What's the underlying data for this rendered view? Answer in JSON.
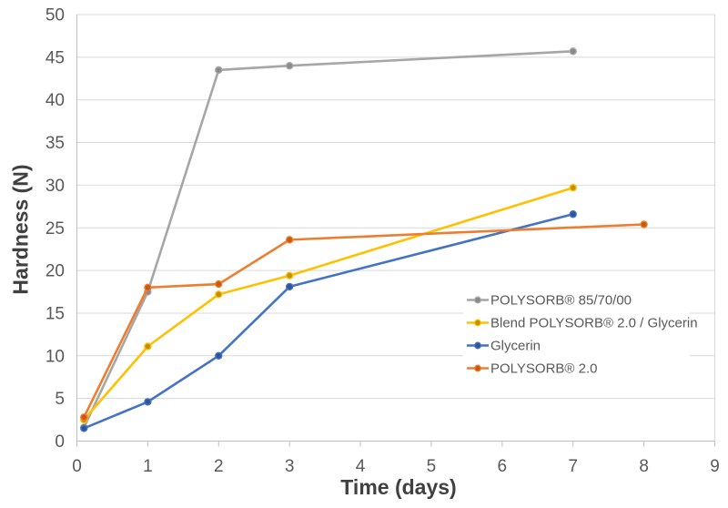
{
  "chart_data": {
    "type": "line",
    "title": "",
    "xlabel": "Time (days)",
    "ylabel": "Hardness (N)",
    "xlim": [
      0,
      9
    ],
    "ylim": [
      0,
      50
    ],
    "x_ticks": [
      0,
      1,
      2,
      3,
      4,
      5,
      6,
      7,
      8,
      9
    ],
    "y_ticks": [
      0,
      5,
      10,
      15,
      20,
      25,
      30,
      35,
      40,
      45,
      50
    ],
    "grid": "horizontal-only",
    "legend_position": "inside-right",
    "colors": {
      "background": "#FFFFFF",
      "gridline": "#D9D9D9",
      "axis_line": "#BFBFBF",
      "right_border": "#D9D9D9",
      "tick_label": "#595959",
      "axis_title": "#404040",
      "legend_text": "#595959",
      "legend_background": "#FFFFFF"
    },
    "series": [
      {
        "name": "POLYSORB® 85/70/00",
        "line_color": "#A6A6A6",
        "marker_color": "#8A8A8A",
        "points": [
          [
            0.1,
            1.6
          ],
          [
            1,
            17.5
          ],
          [
            2,
            43.5
          ],
          [
            3,
            44.0
          ],
          [
            7,
            45.7
          ]
        ]
      },
      {
        "name": "Blend POLYSORB® 2.0 / Glycerin",
        "line_color": "#FFC000",
        "marker_color": "#BF9000",
        "points": [
          [
            0.1,
            2.5
          ],
          [
            1,
            11.1
          ],
          [
            2,
            17.2
          ],
          [
            3,
            19.4
          ],
          [
            7,
            29.7
          ]
        ]
      },
      {
        "name": "Glycerin",
        "line_color": "#4472C4",
        "marker_color": "#2F5597",
        "points": [
          [
            0.1,
            1.5
          ],
          [
            1,
            4.6
          ],
          [
            2,
            10.0
          ],
          [
            3,
            18.1
          ],
          [
            7,
            26.6
          ]
        ]
      },
      {
        "name": "POLYSORB® 2.0",
        "line_color": "#ED7D31",
        "marker_color": "#C55A11",
        "points": [
          [
            0.1,
            2.8
          ],
          [
            1,
            18.0
          ],
          [
            2,
            18.4
          ],
          [
            3,
            23.6
          ],
          [
            8,
            25.4
          ]
        ]
      }
    ]
  }
}
